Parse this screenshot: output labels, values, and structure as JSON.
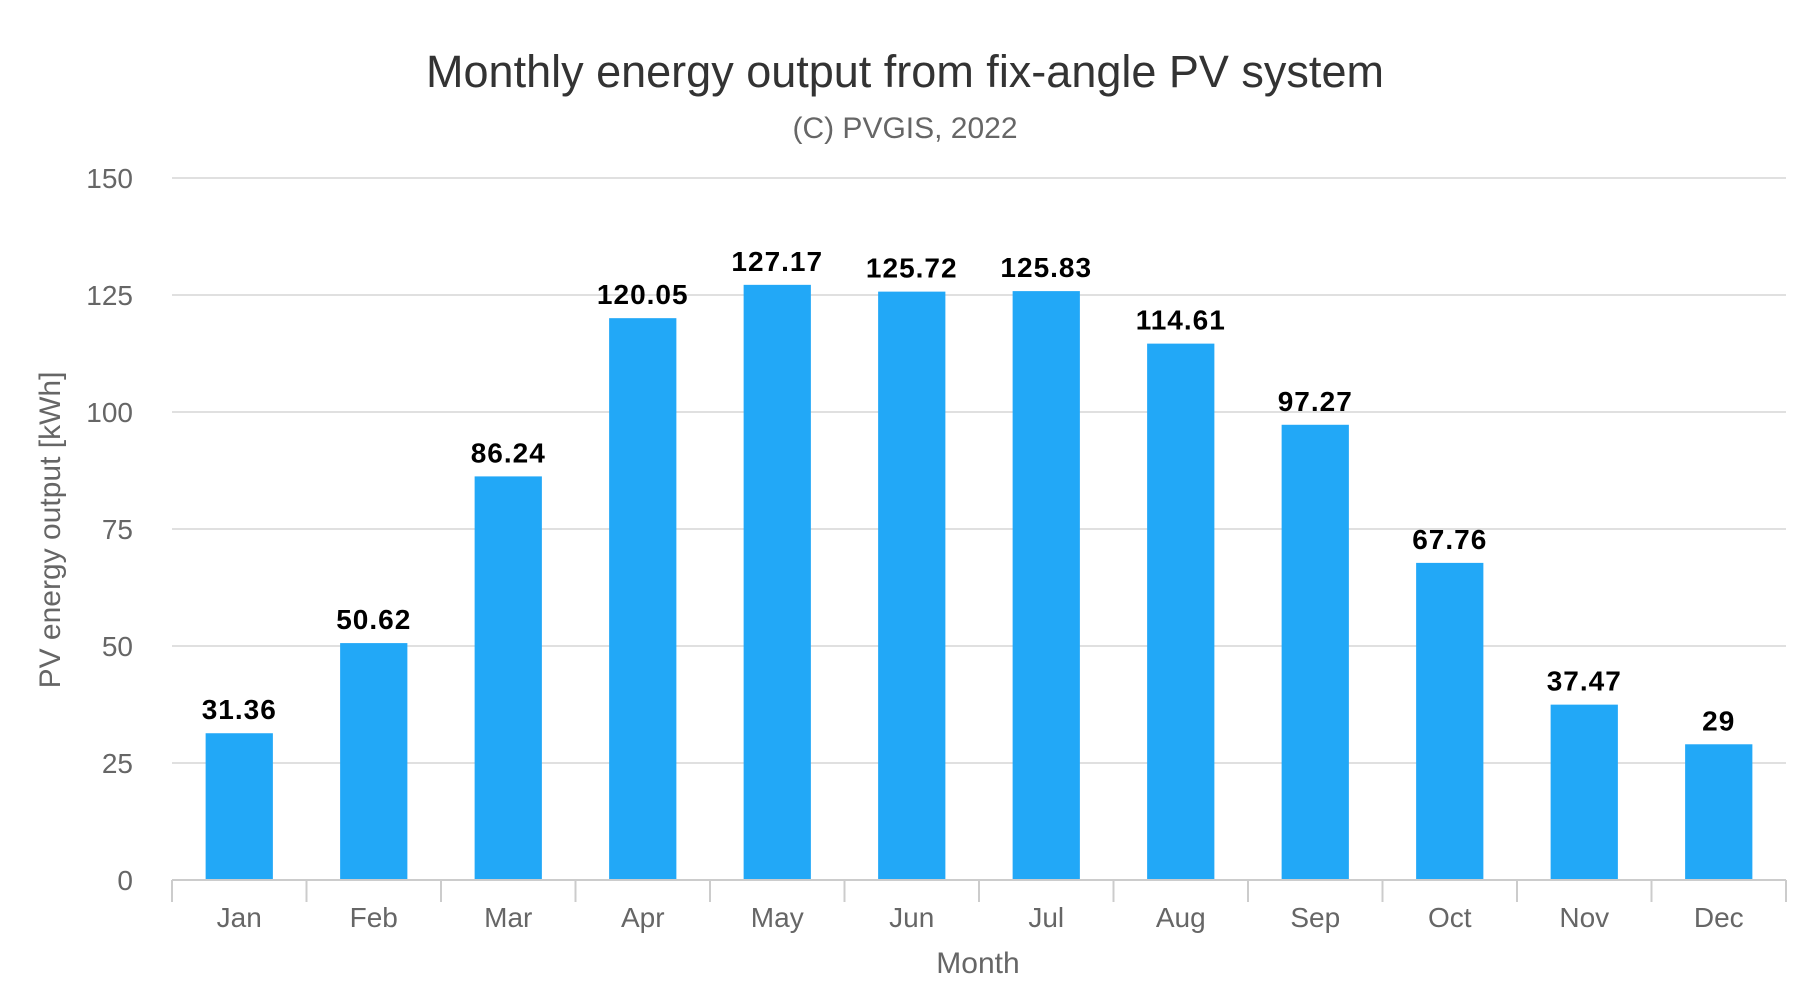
{
  "chart_data": {
    "type": "bar",
    "title": "Monthly energy output from fix-angle PV system",
    "subtitle": "(C) PVGIS, 2022",
    "xlabel": "Month",
    "ylabel": "PV energy output [kWh]",
    "categories": [
      "Jan",
      "Feb",
      "Mar",
      "Apr",
      "May",
      "Jun",
      "Jul",
      "Aug",
      "Sep",
      "Oct",
      "Nov",
      "Dec"
    ],
    "values": [
      31.36,
      50.62,
      86.24,
      120.05,
      127.17,
      125.72,
      125.83,
      114.61,
      97.27,
      67.76,
      37.47,
      29
    ],
    "data_labels": [
      "31.36",
      "50.62",
      "86.24",
      "120.05",
      "127.17",
      "125.72",
      "125.83",
      "114.61",
      "97.27",
      "67.76",
      "37.47",
      "29"
    ],
    "ylim": [
      0,
      150
    ],
    "yticks": [
      0,
      25,
      50,
      75,
      100,
      125,
      150
    ],
    "grid": true,
    "legend": "none",
    "colors": {
      "bar": "#22a8f7",
      "grid": "#e0e0e0",
      "axis": "#cccccc",
      "text": "#666666",
      "title": "#333333",
      "data_label": "#000000"
    }
  }
}
